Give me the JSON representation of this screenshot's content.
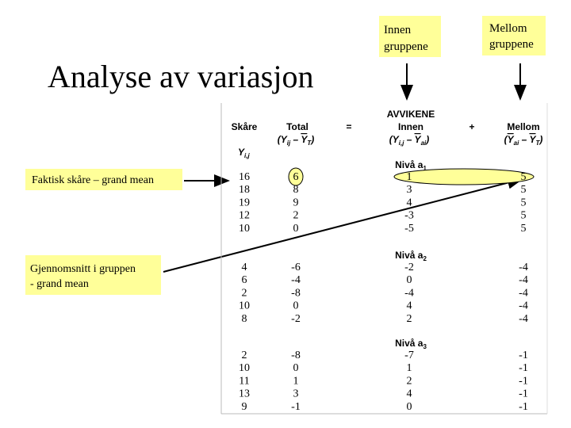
{
  "title": "Analyse av variasjon",
  "callouts": {
    "innen": [
      "Innen",
      "gruppene"
    ],
    "mellom": [
      "Mellom",
      "gruppene"
    ],
    "faktisk": "Faktisk skåre – grand mean",
    "gjennomsnitt": [
      "Gjennomsnitt i gruppen",
      "- grand mean"
    ]
  },
  "table": {
    "header": {
      "avvikene": "AVVIKENE",
      "skare": "Skåre",
      "total": "Total",
      "equals": "=",
      "innen": "Innen",
      "plus": "+",
      "mellom": "Mellom",
      "total_formula": [
        "(Y",
        "ij",
        " – ",
        "Y",
        "T",
        ")"
      ],
      "innen_formula": [
        "(Y",
        "i,j",
        " – ",
        "Y",
        "ai",
        ")"
      ],
      "mellom_formula": [
        "(",
        "Y",
        "ai",
        " – ",
        "Y",
        "T",
        ")"
      ],
      "score_symbol": [
        "Y",
        "i,j"
      ]
    },
    "groups": [
      {
        "label": [
          "Nivå a",
          "1"
        ],
        "rows": [
          [
            16,
            6,
            1,
            5
          ],
          [
            18,
            8,
            3,
            5
          ],
          [
            19,
            9,
            4,
            5
          ],
          [
            12,
            2,
            -3,
            5
          ],
          [
            10,
            0,
            -5,
            5
          ]
        ]
      },
      {
        "label": [
          "Nivå a",
          "2"
        ],
        "rows": [
          [
            4,
            -6,
            -2,
            -4
          ],
          [
            6,
            -4,
            0,
            -4
          ],
          [
            2,
            -8,
            -4,
            -4
          ],
          [
            10,
            0,
            4,
            -4
          ],
          [
            8,
            -2,
            2,
            -4
          ]
        ]
      },
      {
        "label": [
          "Nivå a",
          "3"
        ],
        "rows": [
          [
            2,
            -8,
            -7,
            -1
          ],
          [
            10,
            0,
            1,
            -1
          ],
          [
            11,
            1,
            2,
            -1
          ],
          [
            13,
            3,
            4,
            -1
          ],
          [
            9,
            -1,
            0,
            -1
          ]
        ]
      }
    ]
  }
}
